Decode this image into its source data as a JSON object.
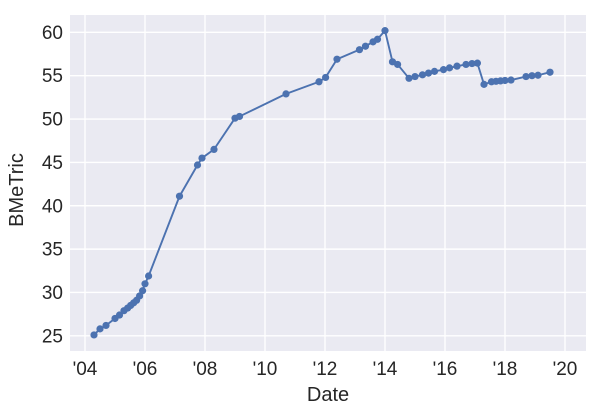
{
  "chart_data": {
    "type": "line",
    "title": "",
    "xlabel": "Date",
    "ylabel": "BMeTric",
    "grid": true,
    "legend": false,
    "xlim": [
      2003.5,
      2020.7
    ],
    "ylim": [
      23.25,
      62.0
    ],
    "x_ticks": {
      "values": [
        2004,
        2006,
        2008,
        2010,
        2012,
        2014,
        2016,
        2018,
        2020
      ],
      "labels": [
        "'04",
        "'06",
        "'08",
        "'10",
        "'12",
        "'14",
        "'16",
        "'18",
        "'20"
      ]
    },
    "y_ticks": {
      "values": [
        25,
        30,
        35,
        40,
        45,
        50,
        55,
        60
      ],
      "labels": [
        "25",
        "30",
        "35",
        "40",
        "45",
        "50",
        "55",
        "60"
      ]
    },
    "colors": {
      "line": "#4C72B0",
      "marker": "#4C72B0",
      "plot_background": "#EAEAF2",
      "gridline": "#FFFFFF",
      "text": "#262626",
      "figure_background": "#FFFFFF"
    },
    "series": [
      {
        "name": "BMeTric",
        "marker": "circle",
        "x": [
          2004.3,
          2004.5,
          2004.7,
          2005.0,
          2005.15,
          2005.3,
          2005.42,
          2005.52,
          2005.62,
          2005.72,
          2005.82,
          2005.92,
          2006.0,
          2006.12,
          2007.15,
          2007.75,
          2007.9,
          2008.3,
          2009.0,
          2009.15,
          2010.7,
          2011.8,
          2012.02,
          2012.4,
          2013.15,
          2013.35,
          2013.6,
          2013.75,
          2014.0,
          2014.25,
          2014.42,
          2014.8,
          2015.0,
          2015.25,
          2015.45,
          2015.65,
          2015.95,
          2016.15,
          2016.4,
          2016.7,
          2016.9,
          2017.08,
          2017.3,
          2017.55,
          2017.7,
          2017.85,
          2018.0,
          2018.2,
          2018.7,
          2018.9,
          2019.1,
          2019.5
        ],
        "y": [
          25.1,
          25.8,
          26.2,
          27.0,
          27.4,
          27.9,
          28.2,
          28.5,
          28.8,
          29.1,
          29.6,
          30.2,
          31.0,
          31.9,
          41.1,
          44.7,
          45.5,
          46.5,
          50.1,
          50.3,
          52.9,
          54.3,
          54.8,
          56.9,
          58.0,
          58.4,
          58.9,
          59.2,
          60.2,
          56.6,
          56.3,
          54.7,
          54.9,
          55.1,
          55.3,
          55.5,
          55.7,
          55.9,
          56.1,
          56.3,
          56.4,
          56.45,
          54.0,
          54.3,
          54.35,
          54.4,
          54.45,
          54.5,
          54.9,
          55.0,
          55.05,
          55.4
        ]
      }
    ]
  }
}
